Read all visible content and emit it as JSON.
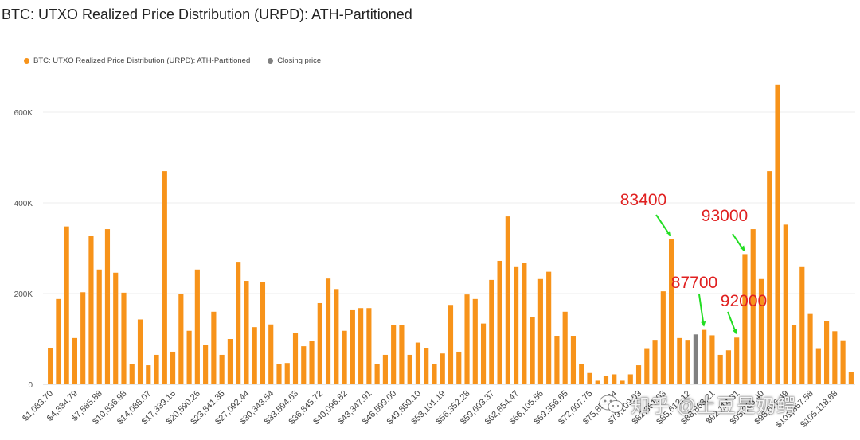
{
  "title": "BTC: UTXO Realized Price Distribution (URPD): ATH-Partitioned",
  "legend": [
    {
      "label": "BTC: UTXO Realized Price Distribution (URPD): ATH-Partitioned",
      "color": "#f7931a"
    },
    {
      "label": "Closing price",
      "color": "#808080"
    }
  ],
  "watermark": {
    "icon": "wechat-icon",
    "text": "知乎 @土豆是奶鳄"
  },
  "chart_data": {
    "type": "bar",
    "title": "BTC: UTXO Realized Price Distribution (URPD): ATH-Partitioned",
    "xlabel": "",
    "ylabel": "",
    "ylim": [
      0,
      700000
    ],
    "yticks": [
      0,
      200000,
      400000,
      600000
    ],
    "ytick_labels": [
      "0",
      "200K",
      "400K",
      "600K"
    ],
    "grid": true,
    "legend_position": "top-left",
    "bar_color": "#f7931a",
    "closing_color": "#808080",
    "closing_index": 79,
    "xtick_every": 3,
    "xtick_labels": [
      "$1,083.70",
      "$4,334.79",
      "$7,585.88",
      "$10,836.98",
      "$14,088.07",
      "$17,339.16",
      "$20,590.26",
      "$23,841.35",
      "$27,092.44",
      "$30,343.54",
      "$33,594.63",
      "$36,845.72",
      "$40,096.82",
      "$43,347.91",
      "$46,599.00",
      "$49,850.10",
      "$53,101.19",
      "$56,352.28",
      "$59,603.37",
      "$62,854.47",
      "$66,105.56",
      "$69,356.65",
      "$72,607.75",
      "$75,858.84",
      "$79,109.93",
      "$82,361.03",
      "$85,612.12",
      "$88,863.21",
      "$92,114.31",
      "$95,365.40",
      "$98,616.49",
      "$101,867.58",
      "$105,118.68"
    ],
    "values": [
      80000,
      188000,
      348000,
      102000,
      203000,
      327000,
      253000,
      342000,
      246000,
      202000,
      45000,
      143000,
      42000,
      65000,
      470000,
      72000,
      200000,
      118000,
      253000,
      86000,
      160000,
      65000,
      100000,
      270000,
      228000,
      126000,
      225000,
      132000,
      45000,
      47000,
      113000,
      84000,
      95000,
      179000,
      233000,
      210000,
      118000,
      165000,
      168000,
      168000,
      45000,
      65000,
      130000,
      130000,
      65000,
      92000,
      80000,
      45000,
      68000,
      175000,
      72000,
      198000,
      188000,
      134000,
      230000,
      272000,
      370000,
      260000,
      267000,
      148000,
      232000,
      248000,
      107000,
      160000,
      107000,
      45000,
      25000,
      8000,
      18000,
      22000,
      8000,
      22000,
      42000,
      78000,
      98000,
      205000,
      320000,
      102000,
      98000,
      110000,
      120000,
      108000,
      65000,
      75000,
      103000,
      287000,
      342000,
      232000,
      470000,
      660000,
      352000,
      130000,
      260000,
      155000,
      78000,
      140000,
      117000,
      97000,
      27000
    ],
    "annotations": [
      {
        "text": "83400",
        "bar_index": 76
      },
      {
        "text": "87700",
        "bar_index": 80
      },
      {
        "text": "93000",
        "bar_index": 85
      },
      {
        "text": "92000",
        "bar_index": 84
      }
    ]
  }
}
